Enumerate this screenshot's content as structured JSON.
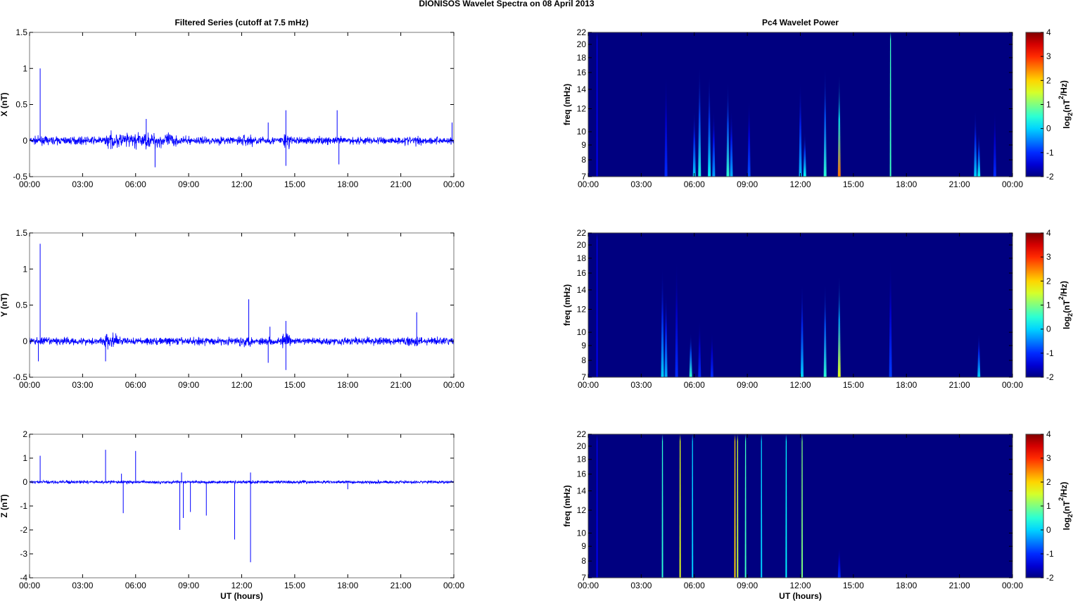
{
  "title": "DIONISOS Wavelet Spectra on 08 April     2013",
  "chart_data": [
    {
      "type": "line",
      "title": "Filtered Series (cutoff at 7.5 mHz)",
      "ylabel": "X (nT)",
      "xlabel": "",
      "xlim": [
        0,
        24
      ],
      "ylim": [
        -0.5,
        1.5
      ],
      "xticklabels": [
        "00:00",
        "03:00",
        "06:00",
        "09:00",
        "12:00",
        "15:00",
        "18:00",
        "21:00",
        "00:00"
      ],
      "yticks": [
        -0.5,
        0,
        0.5,
        1,
        1.5
      ],
      "yticklabels": [
        "-0.5",
        "0",
        "0.5",
        "1",
        "1.5"
      ],
      "color": "#0000ff",
      "noise_amplitude": 0.05,
      "active_intervals": [
        [
          4.3,
          8.3,
          0.1
        ],
        [
          11.8,
          12.6,
          0.08
        ],
        [
          14.3,
          14.7,
          0.12
        ],
        [
          21.2,
          22.2,
          0.06
        ]
      ],
      "spikes": [
        [
          0.6,
          1.0
        ],
        [
          7.1,
          -0.37
        ],
        [
          6.6,
          0.3
        ],
        [
          14.5,
          0.42
        ],
        [
          14.5,
          -0.35
        ],
        [
          17.4,
          0.42
        ],
        [
          17.5,
          -0.33
        ],
        [
          13.5,
          0.25
        ],
        [
          23.9,
          0.25
        ]
      ]
    },
    {
      "type": "line",
      "title": "",
      "ylabel": "Y (nT)",
      "xlabel": "",
      "xlim": [
        0,
        24
      ],
      "ylim": [
        -0.5,
        1.5
      ],
      "xticklabels": [
        "00:00",
        "03:00",
        "06:00",
        "09:00",
        "12:00",
        "15:00",
        "18:00",
        "21:00",
        "00:00"
      ],
      "yticks": [
        -0.5,
        0,
        0.5,
        1,
        1.5
      ],
      "yticklabels": [
        "-0.5",
        "0",
        "0.5",
        "1",
        "1.5"
      ],
      "color": "#0000ff",
      "noise_amplitude": 0.05,
      "active_intervals": [
        [
          4.2,
          5.0,
          0.1
        ],
        [
          11.8,
          12.6,
          0.07
        ],
        [
          14.3,
          14.7,
          0.1
        ],
        [
          21.2,
          22.2,
          0.06
        ]
      ],
      "spikes": [
        [
          0.6,
          1.35
        ],
        [
          0.5,
          -0.28
        ],
        [
          4.3,
          -0.28
        ],
        [
          12.4,
          0.58
        ],
        [
          13.6,
          0.2
        ],
        [
          13.5,
          -0.3
        ],
        [
          14.5,
          0.28
        ],
        [
          14.5,
          -0.4
        ],
        [
          21.9,
          0.4
        ]
      ]
    },
    {
      "type": "line",
      "title": "",
      "ylabel": "Z (nT)",
      "xlabel": "UT (hours)",
      "xlim": [
        0,
        24
      ],
      "ylim": [
        -4,
        2
      ],
      "xticklabels": [
        "00:00",
        "03:00",
        "06:00",
        "09:00",
        "12:00",
        "15:00",
        "18:00",
        "21:00",
        "00:00"
      ],
      "yticks": [
        -4,
        -3,
        -2,
        -1,
        0,
        1,
        2
      ],
      "yticklabels": [
        "-4",
        "-3",
        "-2",
        "-1",
        "0",
        "1",
        "2"
      ],
      "color": "#0000ff",
      "noise_amplitude": 0.06,
      "active_intervals": [
        [
          20.5,
          22.5,
          0.06
        ]
      ],
      "spikes": [
        [
          0.6,
          1.1
        ],
        [
          4.3,
          1.35
        ],
        [
          6.0,
          1.3
        ],
        [
          5.3,
          -1.3
        ],
        [
          5.2,
          0.35
        ],
        [
          8.5,
          -2.0
        ],
        [
          8.6,
          0.4
        ],
        [
          8.7,
          -1.5
        ],
        [
          9.1,
          -1.25
        ],
        [
          10.0,
          -1.4
        ],
        [
          11.6,
          -2.4
        ],
        [
          12.5,
          -3.35
        ],
        [
          12.5,
          0.4
        ],
        [
          18.0,
          -0.3
        ]
      ]
    },
    {
      "type": "heatmap",
      "title": "Pc4 Wavelet Power",
      "ylabel": "freq (mHz)",
      "xlabel": "",
      "xlim": [
        0,
        24
      ],
      "ylim": [
        7,
        22
      ],
      "yscale": "log",
      "xticklabels": [
        "00:00",
        "03:00",
        "06:00",
        "09:00",
        "12:00",
        "15:00",
        "18:00",
        "21:00",
        "00:00"
      ],
      "yticks": [
        7,
        8,
        9,
        10,
        12,
        14,
        16,
        18,
        20,
        22
      ],
      "colorbar": {
        "label": "log2(nT2/Hz)",
        "range": [
          -2,
          4
        ],
        "ticks": [
          "4",
          "3",
          "2",
          "1",
          "0",
          "-1",
          "-2"
        ]
      },
      "background_power": -2,
      "events": [
        [
          0.5,
          22,
          -1.3
        ],
        [
          4.4,
          16,
          -1.0
        ],
        [
          6.0,
          12,
          0.0
        ],
        [
          6.3,
          17,
          0.4
        ],
        [
          6.85,
          16,
          0.2
        ],
        [
          7.1,
          12,
          -0.3
        ],
        [
          7.9,
          15,
          0.5
        ],
        [
          8.1,
          12,
          -0.2
        ],
        [
          9.1,
          13,
          -0.8
        ],
        [
          12.0,
          15,
          -0.1
        ],
        [
          12.25,
          10,
          0.3
        ],
        [
          13.4,
          17,
          0.5
        ],
        [
          14.2,
          16,
          2.6
        ],
        [
          17.1,
          22,
          0.6
        ],
        [
          21.9,
          12,
          0.0
        ],
        [
          22.1,
          10,
          0.3
        ],
        [
          23.0,
          12,
          -1.0
        ]
      ]
    },
    {
      "type": "heatmap",
      "title": "",
      "ylabel": "freq (mHz)",
      "xlabel": "",
      "xlim": [
        0,
        24
      ],
      "ylim": [
        7,
        22
      ],
      "yscale": "log",
      "xticklabels": [
        "00:00",
        "03:00",
        "06:00",
        "09:00",
        "12:00",
        "15:00",
        "18:00",
        "21:00",
        "00:00"
      ],
      "yticks": [
        7,
        8,
        9,
        10,
        12,
        14,
        16,
        18,
        20,
        22
      ],
      "colorbar": {
        "label": "log2(nT2/Hz)",
        "range": [
          -2,
          4
        ],
        "ticks": [
          "4",
          "3",
          "2",
          "1",
          "0",
          "-1",
          "-2"
        ]
      },
      "background_power": -2,
      "events": [
        [
          0.5,
          22,
          -1.3
        ],
        [
          4.2,
          17,
          0.0
        ],
        [
          4.4,
          14,
          -0.2
        ],
        [
          5.0,
          18,
          -1.0
        ],
        [
          5.8,
          10,
          0.5
        ],
        [
          6.3,
          11,
          -1.0
        ],
        [
          7.0,
          10,
          -1.0
        ],
        [
          12.1,
          15,
          0.0
        ],
        [
          13.4,
          15,
          0.5
        ],
        [
          14.2,
          16,
          1.6
        ],
        [
          17.1,
          18,
          -0.9
        ],
        [
          22.1,
          10,
          0.0
        ]
      ]
    },
    {
      "type": "heatmap",
      "title": "",
      "ylabel": "freq (mHz)",
      "xlabel": "UT (hours)",
      "xlim": [
        0,
        24
      ],
      "ylim": [
        7,
        22
      ],
      "yscale": "log",
      "xticklabels": [
        "00:00",
        "03:00",
        "06:00",
        "09:00",
        "12:00",
        "15:00",
        "18:00",
        "21:00",
        "00:00"
      ],
      "yticks": [
        7,
        8,
        9,
        10,
        12,
        14,
        16,
        18,
        20,
        22
      ],
      "colorbar": {
        "label": "log2(nT2/Hz)",
        "range": [
          -2,
          4
        ],
        "ticks": [
          "4",
          "3",
          "2",
          "1",
          "0",
          "-1",
          "-2"
        ]
      },
      "background_power": -2,
      "events": [
        [
          0.5,
          22,
          -1.3
        ],
        [
          4.2,
          22,
          0.5
        ],
        [
          5.2,
          22,
          1.6
        ],
        [
          5.9,
          22,
          0.0
        ],
        [
          8.3,
          22,
          2.0
        ],
        [
          8.45,
          22,
          1.4
        ],
        [
          8.9,
          22,
          0.6
        ],
        [
          9.8,
          22,
          0.0
        ],
        [
          11.2,
          22,
          0.2
        ],
        [
          12.1,
          22,
          1.0
        ],
        [
          14.2,
          9,
          -1.0
        ]
      ]
    }
  ]
}
